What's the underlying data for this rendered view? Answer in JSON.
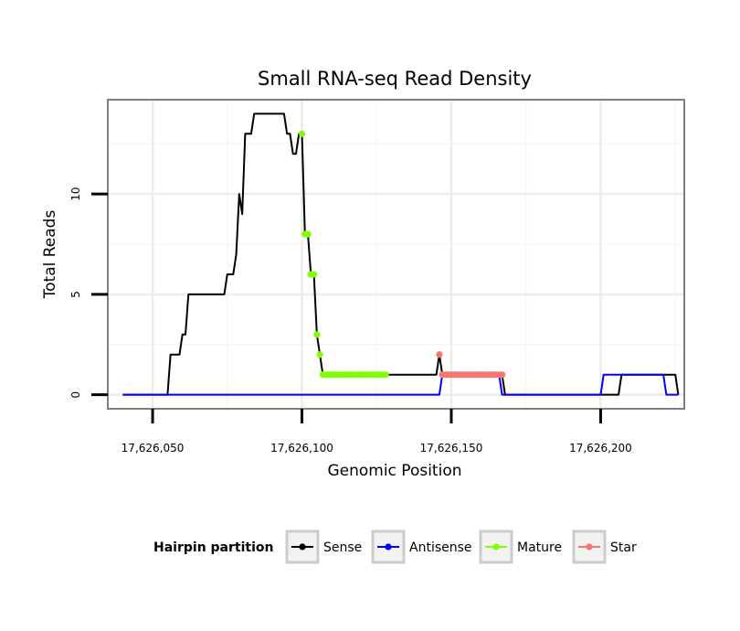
{
  "chart_data": {
    "type": "line",
    "title": "Small RNA-seq Read Density",
    "xlabel": "Genomic Position",
    "ylabel": "Total Reads",
    "xlim": [
      17626035,
      17626228
    ],
    "ylim": [
      -0.7,
      14.7
    ],
    "x_ticks": [
      17626050,
      17626100,
      17626150,
      17626200
    ],
    "x_tick_labels": [
      "17,626,050",
      "17,626,100",
      "17,626,150",
      "17,626,200"
    ],
    "y_ticks": [
      0,
      5,
      10
    ],
    "y_tick_labels": [
      "0",
      "5",
      "10"
    ],
    "grid": true,
    "legend": {
      "title": "Hairpin partition",
      "position": "bottom",
      "items": [
        {
          "label": "Sense",
          "color": "#000000"
        },
        {
          "label": "Antisense",
          "color": "#0000ff"
        },
        {
          "label": "Mature",
          "color": "#7fff00"
        },
        {
          "label": "Star",
          "color": "#f8766d"
        }
      ]
    },
    "series": [
      {
        "name": "Sense",
        "color": "#000000",
        "type": "line",
        "points": [
          [
            17626040,
            0
          ],
          [
            17626055,
            0
          ],
          [
            17626056,
            2
          ],
          [
            17626059,
            2
          ],
          [
            17626060,
            3
          ],
          [
            17626061,
            3
          ],
          [
            17626062,
            5
          ],
          [
            17626074,
            5
          ],
          [
            17626075,
            6
          ],
          [
            17626077,
            6
          ],
          [
            17626078,
            7
          ],
          [
            17626079,
            10
          ],
          [
            17626080,
            9
          ],
          [
            17626081,
            13
          ],
          [
            17626083,
            13
          ],
          [
            17626084,
            14
          ],
          [
            17626094,
            14
          ],
          [
            17626095,
            13
          ],
          [
            17626096,
            13
          ],
          [
            17626097,
            12
          ],
          [
            17626098,
            12
          ],
          [
            17626099,
            13
          ],
          [
            17626100,
            13
          ],
          [
            17626101,
            8
          ],
          [
            17626102,
            8
          ],
          [
            17626103,
            6
          ],
          [
            17626104,
            6
          ],
          [
            17626105,
            3
          ],
          [
            17626106,
            2
          ],
          [
            17626107,
            1
          ],
          [
            17626145,
            1
          ],
          [
            17626146,
            2
          ],
          [
            17626147,
            1
          ],
          [
            17626167,
            1
          ],
          [
            17626168,
            0
          ],
          [
            17626206,
            0
          ],
          [
            17626207,
            1
          ],
          [
            17626225,
            1
          ],
          [
            17626226,
            0
          ]
        ]
      },
      {
        "name": "Antisense",
        "color": "#0000ff",
        "type": "line",
        "points": [
          [
            17626040,
            0
          ],
          [
            17626146,
            0
          ],
          [
            17626147,
            1
          ],
          [
            17626166,
            1
          ],
          [
            17626167,
            0
          ],
          [
            17626200,
            0
          ],
          [
            17626201,
            1
          ],
          [
            17626221,
            1
          ],
          [
            17626222,
            0
          ],
          [
            17626226,
            0
          ]
        ]
      },
      {
        "name": "Mature",
        "color": "#7fff00",
        "type": "points",
        "points": [
          [
            17626100,
            13
          ],
          [
            17626101,
            8
          ],
          [
            17626102,
            8
          ],
          [
            17626103,
            6
          ],
          [
            17626104,
            6
          ],
          [
            17626105,
            3
          ],
          [
            17626106,
            2
          ],
          [
            17626107,
            1
          ],
          [
            17626108,
            1
          ],
          [
            17626109,
            1
          ],
          [
            17626110,
            1
          ],
          [
            17626111,
            1
          ],
          [
            17626112,
            1
          ],
          [
            17626113,
            1
          ],
          [
            17626114,
            1
          ],
          [
            17626115,
            1
          ],
          [
            17626116,
            1
          ],
          [
            17626117,
            1
          ],
          [
            17626118,
            1
          ],
          [
            17626119,
            1
          ],
          [
            17626120,
            1
          ],
          [
            17626121,
            1
          ],
          [
            17626122,
            1
          ],
          [
            17626123,
            1
          ],
          [
            17626124,
            1
          ],
          [
            17626125,
            1
          ],
          [
            17626126,
            1
          ],
          [
            17626127,
            1
          ],
          [
            17626128,
            1
          ]
        ]
      },
      {
        "name": "Star",
        "color": "#f8766d",
        "type": "points",
        "points": [
          [
            17626146,
            2
          ],
          [
            17626147,
            1
          ],
          [
            17626148,
            1
          ],
          [
            17626149,
            1
          ],
          [
            17626150,
            1
          ],
          [
            17626151,
            1
          ],
          [
            17626152,
            1
          ],
          [
            17626153,
            1
          ],
          [
            17626154,
            1
          ],
          [
            17626155,
            1
          ],
          [
            17626156,
            1
          ],
          [
            17626157,
            1
          ],
          [
            17626158,
            1
          ],
          [
            17626159,
            1
          ],
          [
            17626160,
            1
          ],
          [
            17626161,
            1
          ],
          [
            17626162,
            1
          ],
          [
            17626163,
            1
          ],
          [
            17626164,
            1
          ],
          [
            17626165,
            1
          ],
          [
            17626166,
            1
          ],
          [
            17626167,
            1
          ]
        ]
      }
    ]
  }
}
